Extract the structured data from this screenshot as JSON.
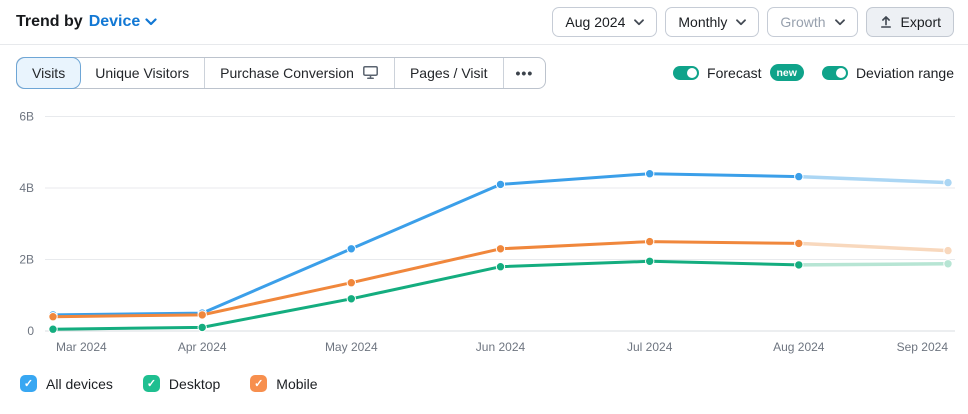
{
  "header": {
    "title_prefix": "Trend by",
    "title_link": "Device",
    "controls": [
      {
        "label": "Aug 2024"
      },
      {
        "label": "Monthly"
      },
      {
        "label": "Growth"
      },
      {
        "label": "Export"
      }
    ]
  },
  "toolbar": {
    "tabs": [
      {
        "label": "Visits",
        "active": true
      },
      {
        "label": "Unique Visitors"
      },
      {
        "label": "Purchase Conversion",
        "icon": "desktop-monitor-icon"
      },
      {
        "label": "Pages / Visit"
      },
      {
        "label": "•••"
      }
    ],
    "toggles": [
      {
        "label": "Forecast",
        "badge": "new",
        "on": true
      },
      {
        "label": "Deviation range",
        "on": true
      }
    ]
  },
  "chart_data": {
    "type": "line",
    "x": [
      "Mar 2024",
      "Apr 2024",
      "May 2024",
      "Jun 2024",
      "Jul 2024",
      "Aug 2024",
      "Sep 2024"
    ],
    "ylim_billions": [
      0,
      6
    ],
    "yticks_billions": [
      0,
      2,
      4,
      6
    ],
    "ytick_labels": [
      "0",
      "2B",
      "4B",
      "6B"
    ],
    "grid": true,
    "forecast_from_index": 5,
    "forecast_note": "Sep 2024 values are forecast (rendered in lighter color)",
    "series": [
      {
        "name": "All devices",
        "color": "#3b9fe9",
        "forecast_color": "#abd6f4",
        "values_billions": [
          0.45,
          0.5,
          2.3,
          4.1,
          4.4,
          4.32,
          4.15
        ]
      },
      {
        "name": "Desktop",
        "color": "#14ad7f",
        "forecast_color": "#b7e5d4",
        "values_billions": [
          0.05,
          0.1,
          0.9,
          1.8,
          1.95,
          1.85,
          1.88
        ]
      },
      {
        "name": "Mobile",
        "color": "#f0873c",
        "forecast_color": "#f8d8bd",
        "values_billions": [
          0.4,
          0.45,
          1.35,
          2.3,
          2.5,
          2.45,
          2.25
        ]
      }
    ]
  },
  "legend": {
    "items": [
      {
        "label": "All devices",
        "color": "#38a7f2",
        "checked": true
      },
      {
        "label": "Desktop",
        "color": "#1fbf90",
        "checked": true
      },
      {
        "label": "Mobile",
        "color": "#f78f4e",
        "checked": true
      }
    ]
  },
  "colors": {
    "accent_blue": "#1278d4",
    "toggle_teal": "#0fa38a",
    "grid_line": "#e8eaed",
    "axis_text": "#6e7580"
  }
}
